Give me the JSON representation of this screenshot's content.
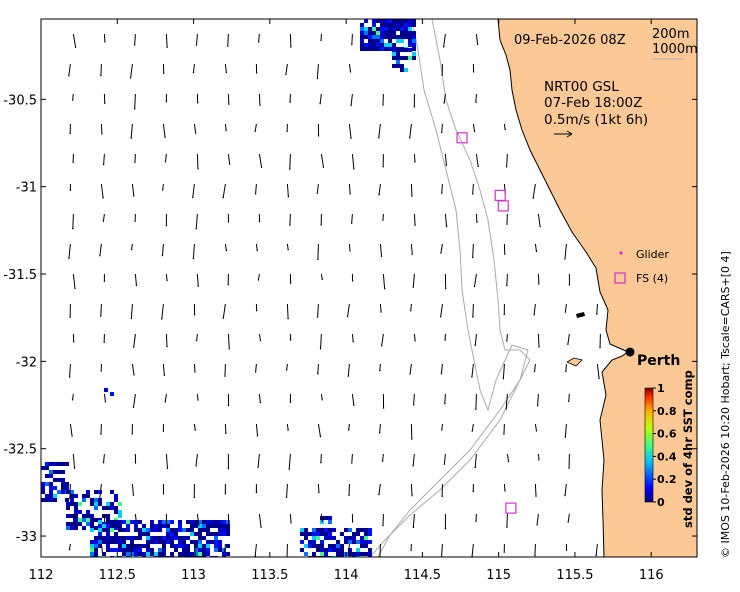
{
  "map": {
    "date_label": "09-Feb-2026 08Z",
    "isobath_labels": [
      "200m",
      "1000m"
    ],
    "product": {
      "name": "NRT00 GSL",
      "time": "07-Feb 18:00Z",
      "scale": "0.5m/s (1kt 6h)"
    },
    "legend": {
      "glider": "Glider",
      "fs": "FS (4)"
    },
    "city": "Perth",
    "colorbar_title": "std dev of 4hr SST comp",
    "colorbar_ticks": [
      "0",
      "0.2",
      "0.4",
      "0.6",
      "0.8",
      "1"
    ],
    "colorbar_range": [
      0,
      1
    ],
    "side_credit": "© IMOS 10-Feb-2026 10:20 Hobart; Tscale=CARS+[0 4]",
    "colors": {
      "land": "#fcc996",
      "isobath": "#aaaaaa",
      "fs_marker": "#cc33cc",
      "glider_marker": "#cc33cc",
      "arrow": "#000000"
    }
  },
  "chart_data": {
    "type": "map",
    "xlim": [
      112,
      116.3
    ],
    "ylim": [
      -33.12,
      -30.04
    ],
    "xticks": [
      "112",
      "112.5",
      "113",
      "113.5",
      "114",
      "114.5",
      "115",
      "115.5",
      "116"
    ],
    "yticks": [
      "-30.5",
      "-31",
      "-31.5",
      "-32",
      "-32.5",
      "-33"
    ],
    "fs_stations": [
      {
        "lon": 114.76,
        "lat": -30.72
      },
      {
        "lon": 115.01,
        "lat": -31.05
      },
      {
        "lon": 115.03,
        "lat": -31.11
      },
      {
        "lon": 115.08,
        "lat": -32.84
      }
    ],
    "perth": {
      "lon": 115.86,
      "lat": -31.95
    }
  }
}
